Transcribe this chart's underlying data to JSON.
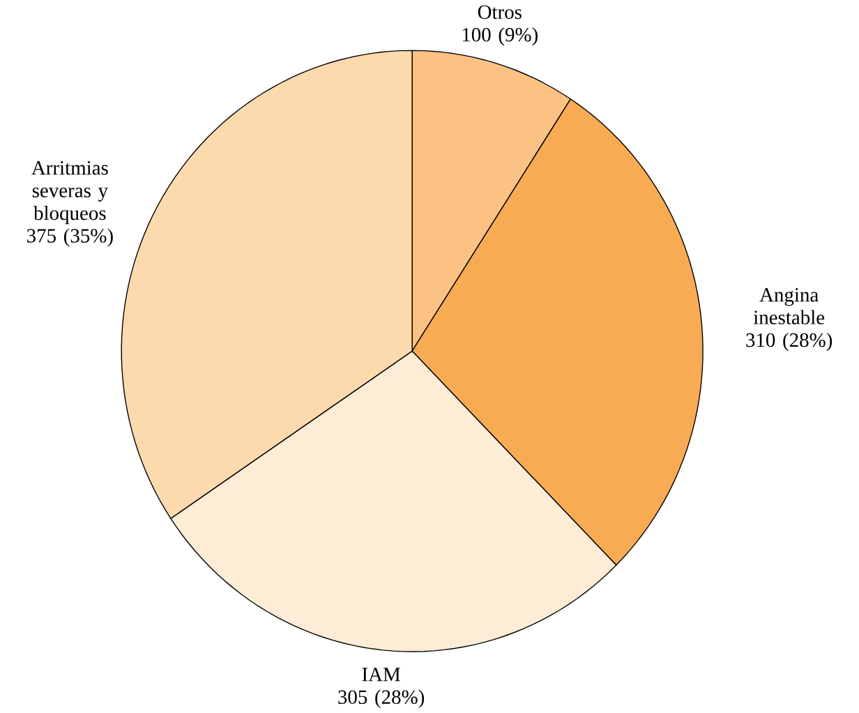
{
  "chart_data": {
    "type": "pie",
    "categories": [
      "Otros",
      "Angina inestable",
      "IAM",
      "Arritmias severas y bloqueos"
    ],
    "values": [
      100,
      310,
      305,
      375
    ],
    "value_labels": [
      "100 (9%)",
      "310 (28%)",
      "305 (28%)",
      "375 (35%)"
    ],
    "colors": [
      "#fbc283",
      "#f8ab53",
      "#feecd6",
      "#fdd9ae"
    ]
  }
}
